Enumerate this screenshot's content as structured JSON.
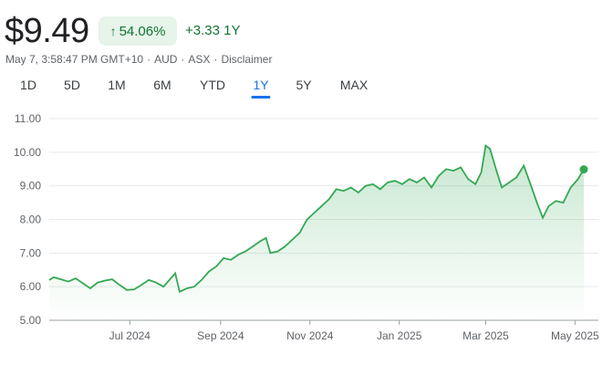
{
  "header": {
    "price": "$9.49",
    "change_pct": "54.06%",
    "change_arrow": "↑",
    "change_abs": "+3.33 1Y",
    "timestamp": "May 7, 3:58:47 PM GMT+10",
    "currency": "AUD",
    "exchange": "ASX",
    "disclaimer": "Disclaimer",
    "separator": "·"
  },
  "tabs": [
    {
      "label": "1D",
      "active": false
    },
    {
      "label": "5D",
      "active": false
    },
    {
      "label": "1M",
      "active": false
    },
    {
      "label": "6M",
      "active": false
    },
    {
      "label": "YTD",
      "active": false
    },
    {
      "label": "1Y",
      "active": true
    },
    {
      "label": "5Y",
      "active": false
    },
    {
      "label": "MAX",
      "active": false
    }
  ],
  "colors": {
    "line": "#34a853",
    "fill_top": "#34a853",
    "positive": "#137333",
    "pill_bg": "#e6f4ea",
    "active_tab": "#1a73e8"
  },
  "chart_data": {
    "type": "area",
    "xlabel": "",
    "ylabel": "",
    "ylim": [
      5.0,
      11.0
    ],
    "ytick_labels": [
      "11.00",
      "10.00",
      "9.00",
      "8.00",
      "7.00",
      "6.00",
      "5.00"
    ],
    "ytick_values": [
      11,
      10,
      9,
      8,
      7,
      6,
      5
    ],
    "xlim": [
      "2024-05-07",
      "2025-05-07"
    ],
    "xtick_labels": [
      "Jul 2024",
      "Sep 2024",
      "Nov 2024",
      "Jan 2025",
      "Mar 2025",
      "May 2025"
    ],
    "xtick_dates": [
      "2024-07-01",
      "2024-09-01",
      "2024-11-01",
      "2025-01-01",
      "2025-03-01",
      "2025-05-01"
    ],
    "grid": true,
    "series": [
      {
        "points": [
          [
            "2024-05-07",
            6.2
          ],
          [
            "2024-05-10",
            6.28
          ],
          [
            "2024-05-15",
            6.22
          ],
          [
            "2024-05-20",
            6.15
          ],
          [
            "2024-05-25",
            6.25
          ],
          [
            "2024-05-30",
            6.1
          ],
          [
            "2024-06-04",
            5.95
          ],
          [
            "2024-06-09",
            6.12
          ],
          [
            "2024-06-14",
            6.18
          ],
          [
            "2024-06-19",
            6.22
          ],
          [
            "2024-06-24",
            6.05
          ],
          [
            "2024-06-29",
            5.9
          ],
          [
            "2024-07-04",
            5.92
          ],
          [
            "2024-07-09",
            6.05
          ],
          [
            "2024-07-14",
            6.2
          ],
          [
            "2024-07-19",
            6.12
          ],
          [
            "2024-07-24",
            6.0
          ],
          [
            "2024-07-29",
            6.25
          ],
          [
            "2024-08-01",
            6.4
          ],
          [
            "2024-08-04",
            5.85
          ],
          [
            "2024-08-09",
            5.95
          ],
          [
            "2024-08-14",
            6.0
          ],
          [
            "2024-08-19",
            6.2
          ],
          [
            "2024-08-24",
            6.45
          ],
          [
            "2024-08-29",
            6.6
          ],
          [
            "2024-09-03",
            6.85
          ],
          [
            "2024-09-08",
            6.8
          ],
          [
            "2024-09-13",
            6.95
          ],
          [
            "2024-09-18",
            7.05
          ],
          [
            "2024-09-23",
            7.2
          ],
          [
            "2024-09-28",
            7.35
          ],
          [
            "2024-10-02",
            7.45
          ],
          [
            "2024-10-05",
            7.0
          ],
          [
            "2024-10-10",
            7.05
          ],
          [
            "2024-10-15",
            7.2
          ],
          [
            "2024-10-20",
            7.4
          ],
          [
            "2024-10-25",
            7.6
          ],
          [
            "2024-10-30",
            8.0
          ],
          [
            "2024-11-04",
            8.2
          ],
          [
            "2024-11-09",
            8.4
          ],
          [
            "2024-11-14",
            8.6
          ],
          [
            "2024-11-19",
            8.9
          ],
          [
            "2024-11-24",
            8.85
          ],
          [
            "2024-11-29",
            8.95
          ],
          [
            "2024-12-04",
            8.8
          ],
          [
            "2024-12-09",
            9.0
          ],
          [
            "2024-12-14",
            9.05
          ],
          [
            "2024-12-19",
            8.9
          ],
          [
            "2024-12-24",
            9.1
          ],
          [
            "2024-12-29",
            9.15
          ],
          [
            "2025-01-03",
            9.05
          ],
          [
            "2025-01-08",
            9.2
          ],
          [
            "2025-01-13",
            9.1
          ],
          [
            "2025-01-18",
            9.25
          ],
          [
            "2025-01-23",
            8.95
          ],
          [
            "2025-01-28",
            9.3
          ],
          [
            "2025-02-02",
            9.5
          ],
          [
            "2025-02-07",
            9.45
          ],
          [
            "2025-02-12",
            9.55
          ],
          [
            "2025-02-17",
            9.2
          ],
          [
            "2025-02-22",
            9.05
          ],
          [
            "2025-02-26",
            9.4
          ],
          [
            "2025-03-01",
            10.2
          ],
          [
            "2025-03-04",
            10.1
          ],
          [
            "2025-03-08",
            9.5
          ],
          [
            "2025-03-12",
            8.95
          ],
          [
            "2025-03-17",
            9.1
          ],
          [
            "2025-03-22",
            9.25
          ],
          [
            "2025-03-27",
            9.6
          ],
          [
            "2025-04-01",
            9.0
          ],
          [
            "2025-04-05",
            8.5
          ],
          [
            "2025-04-09",
            8.05
          ],
          [
            "2025-04-13",
            8.4
          ],
          [
            "2025-04-18",
            8.55
          ],
          [
            "2025-04-23",
            8.5
          ],
          [
            "2025-04-28",
            8.95
          ],
          [
            "2025-05-03",
            9.2
          ],
          [
            "2025-05-07",
            9.49
          ]
        ]
      }
    ]
  }
}
